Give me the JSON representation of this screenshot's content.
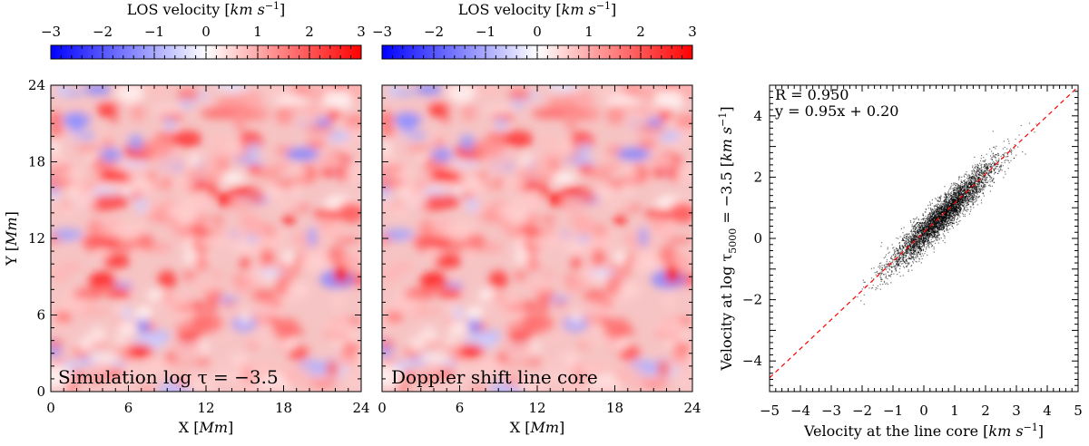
{
  "chart_data": [
    {
      "type": "colorbar",
      "title": "LOS velocity",
      "unit": "km s",
      "unit_exponent": "−1",
      "range": [
        -3,
        3
      ],
      "ticks": [
        "−3",
        "−2",
        "−1",
        "0",
        "1",
        "2",
        "3"
      ],
      "colors": {
        "low": "#0000ff",
        "mid": "#ffffff",
        "high": "#ff0000"
      }
    },
    {
      "type": "colorbar",
      "title": "LOS velocity",
      "unit": "km s",
      "unit_exponent": "−1",
      "range": [
        -3,
        3
      ],
      "ticks": [
        "−3",
        "−2",
        "−1",
        "0",
        "1",
        "2",
        "3"
      ],
      "colors": {
        "low": "#0000ff",
        "mid": "#ffffff",
        "high": "#ff0000"
      }
    },
    {
      "type": "heatmap",
      "panel_label": "Simulation log τ = −3.5",
      "xlabel": "X [",
      "xlabel_unit": "Mm",
      "xlabel_close": "]",
      "ylabel": "Y [",
      "ylabel_unit": "Mm",
      "ylabel_close": "]",
      "xlim": [
        0,
        24
      ],
      "ylim": [
        0,
        24
      ],
      "xticks": [
        "0",
        "6",
        "12",
        "18",
        "24"
      ],
      "yticks": [
        "0",
        "6",
        "12",
        "18",
        "24"
      ],
      "value_range": [
        -3,
        3
      ]
    },
    {
      "type": "heatmap",
      "panel_label": "Doppler shift line core",
      "xlabel": "X [",
      "xlabel_unit": "Mm",
      "xlabel_close": "]",
      "xlim": [
        0,
        24
      ],
      "ylim": [
        0,
        24
      ],
      "xticks": [
        "0",
        "6",
        "12",
        "18",
        "24"
      ],
      "value_range": [
        -3,
        3
      ]
    },
    {
      "type": "scatter",
      "stats": [
        "R = 0.950",
        "y = 0.95x + 0.20"
      ],
      "correlation": 0.95,
      "fit": {
        "slope": 0.95,
        "intercept": 0.2
      },
      "x_center": 0.6,
      "x_spread": 0.85,
      "xlabel": "Velocity at the line core  [",
      "xlabel_unit": "km s",
      "xlabel_exponent": "−1",
      "xlabel_close": "]",
      "ylabel": "Velocity at log τ",
      "ylabel_sub": "5000",
      "ylabel_rest": " = −3.5   [",
      "ylabel_unit": "km s",
      "ylabel_exponent": "−1",
      "ylabel_close": "]",
      "xlim": [
        -5,
        5
      ],
      "ylim": [
        -5,
        5
      ],
      "xticks": [
        "−5",
        "−4",
        "−3",
        "−2",
        "−1",
        "0",
        "1",
        "2",
        "3",
        "4",
        "5"
      ],
      "yticks": [
        "−4",
        "−2",
        "0",
        "2",
        "4"
      ],
      "line_color": "#ff0000",
      "point_color": "#000000"
    }
  ]
}
